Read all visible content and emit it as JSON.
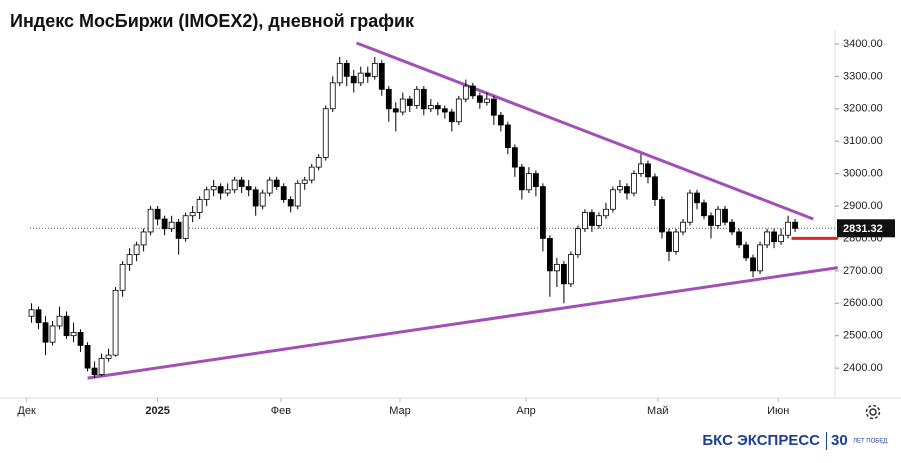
{
  "chart_data": {
    "type": "candlestick",
    "title": "Индекс МосБиржи (IMOEX2), дневной график",
    "xlim": [
      -4.5,
      114.7
    ],
    "xticks": [
      {
        "value": -0.7,
        "label": "Дек"
      },
      {
        "value": 18,
        "label": "2025"
      },
      {
        "value": 35.6,
        "label": "Фев"
      },
      {
        "value": 52.6,
        "label": "Мар"
      },
      {
        "value": 70.6,
        "label": "Апр"
      },
      {
        "value": 89.4,
        "label": "Май"
      },
      {
        "value": 106.6,
        "label": "Июн"
      }
    ],
    "ylim": [
      2317,
      3443
    ],
    "yticks": [
      {
        "value": 2400,
        "label": "2400.00"
      },
      {
        "value": 2500,
        "label": "2500.00"
      },
      {
        "value": 2600,
        "label": "2600.00"
      },
      {
        "value": 2700,
        "label": "2700.00"
      },
      {
        "value": 2800,
        "label": "2800.00"
      },
      {
        "value": 2900,
        "label": "2900.00"
      },
      {
        "value": 3000,
        "label": "3000.00"
      },
      {
        "value": 3100,
        "label": "3100.00"
      },
      {
        "value": 3200,
        "label": "3200.00"
      },
      {
        "value": 3300,
        "label": "3300.00"
      },
      {
        "value": 3400,
        "label": "3400.00"
      }
    ],
    "series": [
      {
        "up_color": "#ffffff",
        "down_color": "#000000",
        "ohlc": [
          [
            2560,
            2600,
            2540,
            2580
          ],
          [
            2580,
            2590,
            2520,
            2540
          ],
          [
            2540,
            2560,
            2440,
            2480
          ],
          [
            2480,
            2545,
            2470,
            2530
          ],
          [
            2530,
            2590,
            2520,
            2560
          ],
          [
            2560,
            2575,
            2490,
            2500
          ],
          [
            2500,
            2540,
            2480,
            2510
          ],
          [
            2510,
            2520,
            2450,
            2470
          ],
          [
            2470,
            2480,
            2390,
            2400
          ],
          [
            2400,
            2420,
            2370,
            2380
          ],
          [
            2380,
            2445,
            2375,
            2430
          ],
          [
            2430,
            2460,
            2420,
            2440
          ],
          [
            2440,
            2650,
            2435,
            2640
          ],
          [
            2640,
            2730,
            2620,
            2720
          ],
          [
            2720,
            2770,
            2700,
            2750
          ],
          [
            2750,
            2790,
            2730,
            2780
          ],
          [
            2780,
            2830,
            2760,
            2820
          ],
          [
            2820,
            2900,
            2810,
            2890
          ],
          [
            2890,
            2900,
            2840,
            2860
          ],
          [
            2860,
            2870,
            2810,
            2830
          ],
          [
            2830,
            2870,
            2820,
            2850
          ],
          [
            2850,
            2860,
            2750,
            2800
          ],
          [
            2800,
            2880,
            2790,
            2870
          ],
          [
            2870,
            2900,
            2850,
            2880
          ],
          [
            2880,
            2930,
            2860,
            2920
          ],
          [
            2920,
            2960,
            2900,
            2950
          ],
          [
            2950,
            2980,
            2930,
            2960
          ],
          [
            2960,
            2970,
            2920,
            2940
          ],
          [
            2940,
            2970,
            2930,
            2950
          ],
          [
            2950,
            2990,
            2940,
            2980
          ],
          [
            2980,
            2990,
            2940,
            2960
          ],
          [
            2960,
            2980,
            2930,
            2950
          ],
          [
            2950,
            2960,
            2870,
            2900
          ],
          [
            2900,
            2950,
            2890,
            2940
          ],
          [
            2940,
            2990,
            2930,
            2980
          ],
          [
            2980,
            2990,
            2950,
            2960
          ],
          [
            2960,
            2970,
            2910,
            2920
          ],
          [
            2920,
            2930,
            2880,
            2900
          ],
          [
            2900,
            2980,
            2890,
            2970
          ],
          [
            2970,
            2990,
            2950,
            2980
          ],
          [
            2980,
            3030,
            2970,
            3020
          ],
          [
            3020,
            3060,
            3010,
            3050
          ],
          [
            3050,
            3210,
            3040,
            3200
          ],
          [
            3200,
            3300,
            3190,
            3280
          ],
          [
            3280,
            3360,
            3270,
            3340
          ],
          [
            3340,
            3350,
            3270,
            3300
          ],
          [
            3300,
            3320,
            3250,
            3280
          ],
          [
            3280,
            3330,
            3270,
            3310
          ],
          [
            3310,
            3330,
            3280,
            3300
          ],
          [
            3300,
            3360,
            3290,
            3340
          ],
          [
            3340,
            3350,
            3240,
            3260
          ],
          [
            3260,
            3270,
            3160,
            3200
          ],
          [
            3200,
            3220,
            3130,
            3190
          ],
          [
            3190,
            3250,
            3180,
            3230
          ],
          [
            3230,
            3240,
            3190,
            3210
          ],
          [
            3210,
            3270,
            3200,
            3260
          ],
          [
            3260,
            3270,
            3180,
            3200
          ],
          [
            3200,
            3230,
            3190,
            3210
          ],
          [
            3210,
            3220,
            3180,
            3200
          ],
          [
            3200,
            3210,
            3170,
            3190
          ],
          [
            3190,
            3200,
            3130,
            3160
          ],
          [
            3160,
            3240,
            3150,
            3230
          ],
          [
            3230,
            3290,
            3220,
            3270
          ],
          [
            3270,
            3280,
            3230,
            3240
          ],
          [
            3240,
            3250,
            3200,
            3220
          ],
          [
            3220,
            3250,
            3210,
            3230
          ],
          [
            3230,
            3240,
            3150,
            3180
          ],
          [
            3180,
            3190,
            3130,
            3150
          ],
          [
            3150,
            3160,
            3060,
            3080
          ],
          [
            3080,
            3090,
            2990,
            3020
          ],
          [
            3020,
            3030,
            2920,
            2950
          ],
          [
            2950,
            3020,
            2940,
            3000
          ],
          [
            3000,
            3010,
            2930,
            2960
          ],
          [
            2960,
            2970,
            2760,
            2800
          ],
          [
            2800,
            2810,
            2620,
            2700
          ],
          [
            2700,
            2740,
            2650,
            2720
          ],
          [
            2720,
            2730,
            2600,
            2660
          ],
          [
            2660,
            2760,
            2650,
            2750
          ],
          [
            2750,
            2840,
            2740,
            2830
          ],
          [
            2830,
            2890,
            2820,
            2880
          ],
          [
            2880,
            2890,
            2820,
            2840
          ],
          [
            2840,
            2880,
            2830,
            2870
          ],
          [
            2870,
            2910,
            2860,
            2890
          ],
          [
            2890,
            2960,
            2880,
            2950
          ],
          [
            2950,
            2980,
            2940,
            2960
          ],
          [
            2960,
            2970,
            2920,
            2940
          ],
          [
            2940,
            3010,
            2930,
            3000
          ],
          [
            3000,
            3060,
            2990,
            3030
          ],
          [
            3030,
            3040,
            2970,
            2990
          ],
          [
            2990,
            3000,
            2900,
            2920
          ],
          [
            2920,
            2930,
            2800,
            2820
          ],
          [
            2820,
            2830,
            2730,
            2760
          ],
          [
            2760,
            2830,
            2750,
            2820
          ],
          [
            2820,
            2860,
            2810,
            2850
          ],
          [
            2850,
            2950,
            2840,
            2940
          ],
          [
            2940,
            2950,
            2890,
            2910
          ],
          [
            2910,
            2920,
            2860,
            2870
          ],
          [
            2870,
            2880,
            2800,
            2840
          ],
          [
            2840,
            2900,
            2830,
            2890
          ],
          [
            2890,
            2900,
            2840,
            2850
          ],
          [
            2850,
            2860,
            2810,
            2820
          ],
          [
            2820,
            2830,
            2770,
            2780
          ],
          [
            2780,
            2790,
            2730,
            2740
          ],
          [
            2740,
            2750,
            2680,
            2700
          ],
          [
            2700,
            2790,
            2690,
            2780
          ],
          [
            2780,
            2830,
            2770,
            2820
          ],
          [
            2820,
            2830,
            2770,
            2790
          ],
          [
            2790,
            2830,
            2780,
            2810
          ],
          [
            2810,
            2870,
            2800,
            2850
          ],
          [
            2850,
            2860,
            2820,
            2831.32
          ]
        ]
      }
    ],
    "trendlines": [
      {
        "color": "#a24fb6",
        "x": [
          46.4,
          111.6
        ],
        "y": [
          3403,
          2860
        ]
      },
      {
        "color": "#a24fb6",
        "x": [
          8,
          115.1
        ],
        "y": [
          2369,
          2710
        ]
      }
    ],
    "levels": [
      {
        "color": "#e0242b",
        "value": 2800,
        "x": [
          108.5,
          115.1
        ]
      }
    ]
  },
  "footer": {
    "brand": "БКС ЭКСПРЕСС",
    "badge": "30",
    "badge_text": "ЛЕТ ПОБЕД"
  }
}
